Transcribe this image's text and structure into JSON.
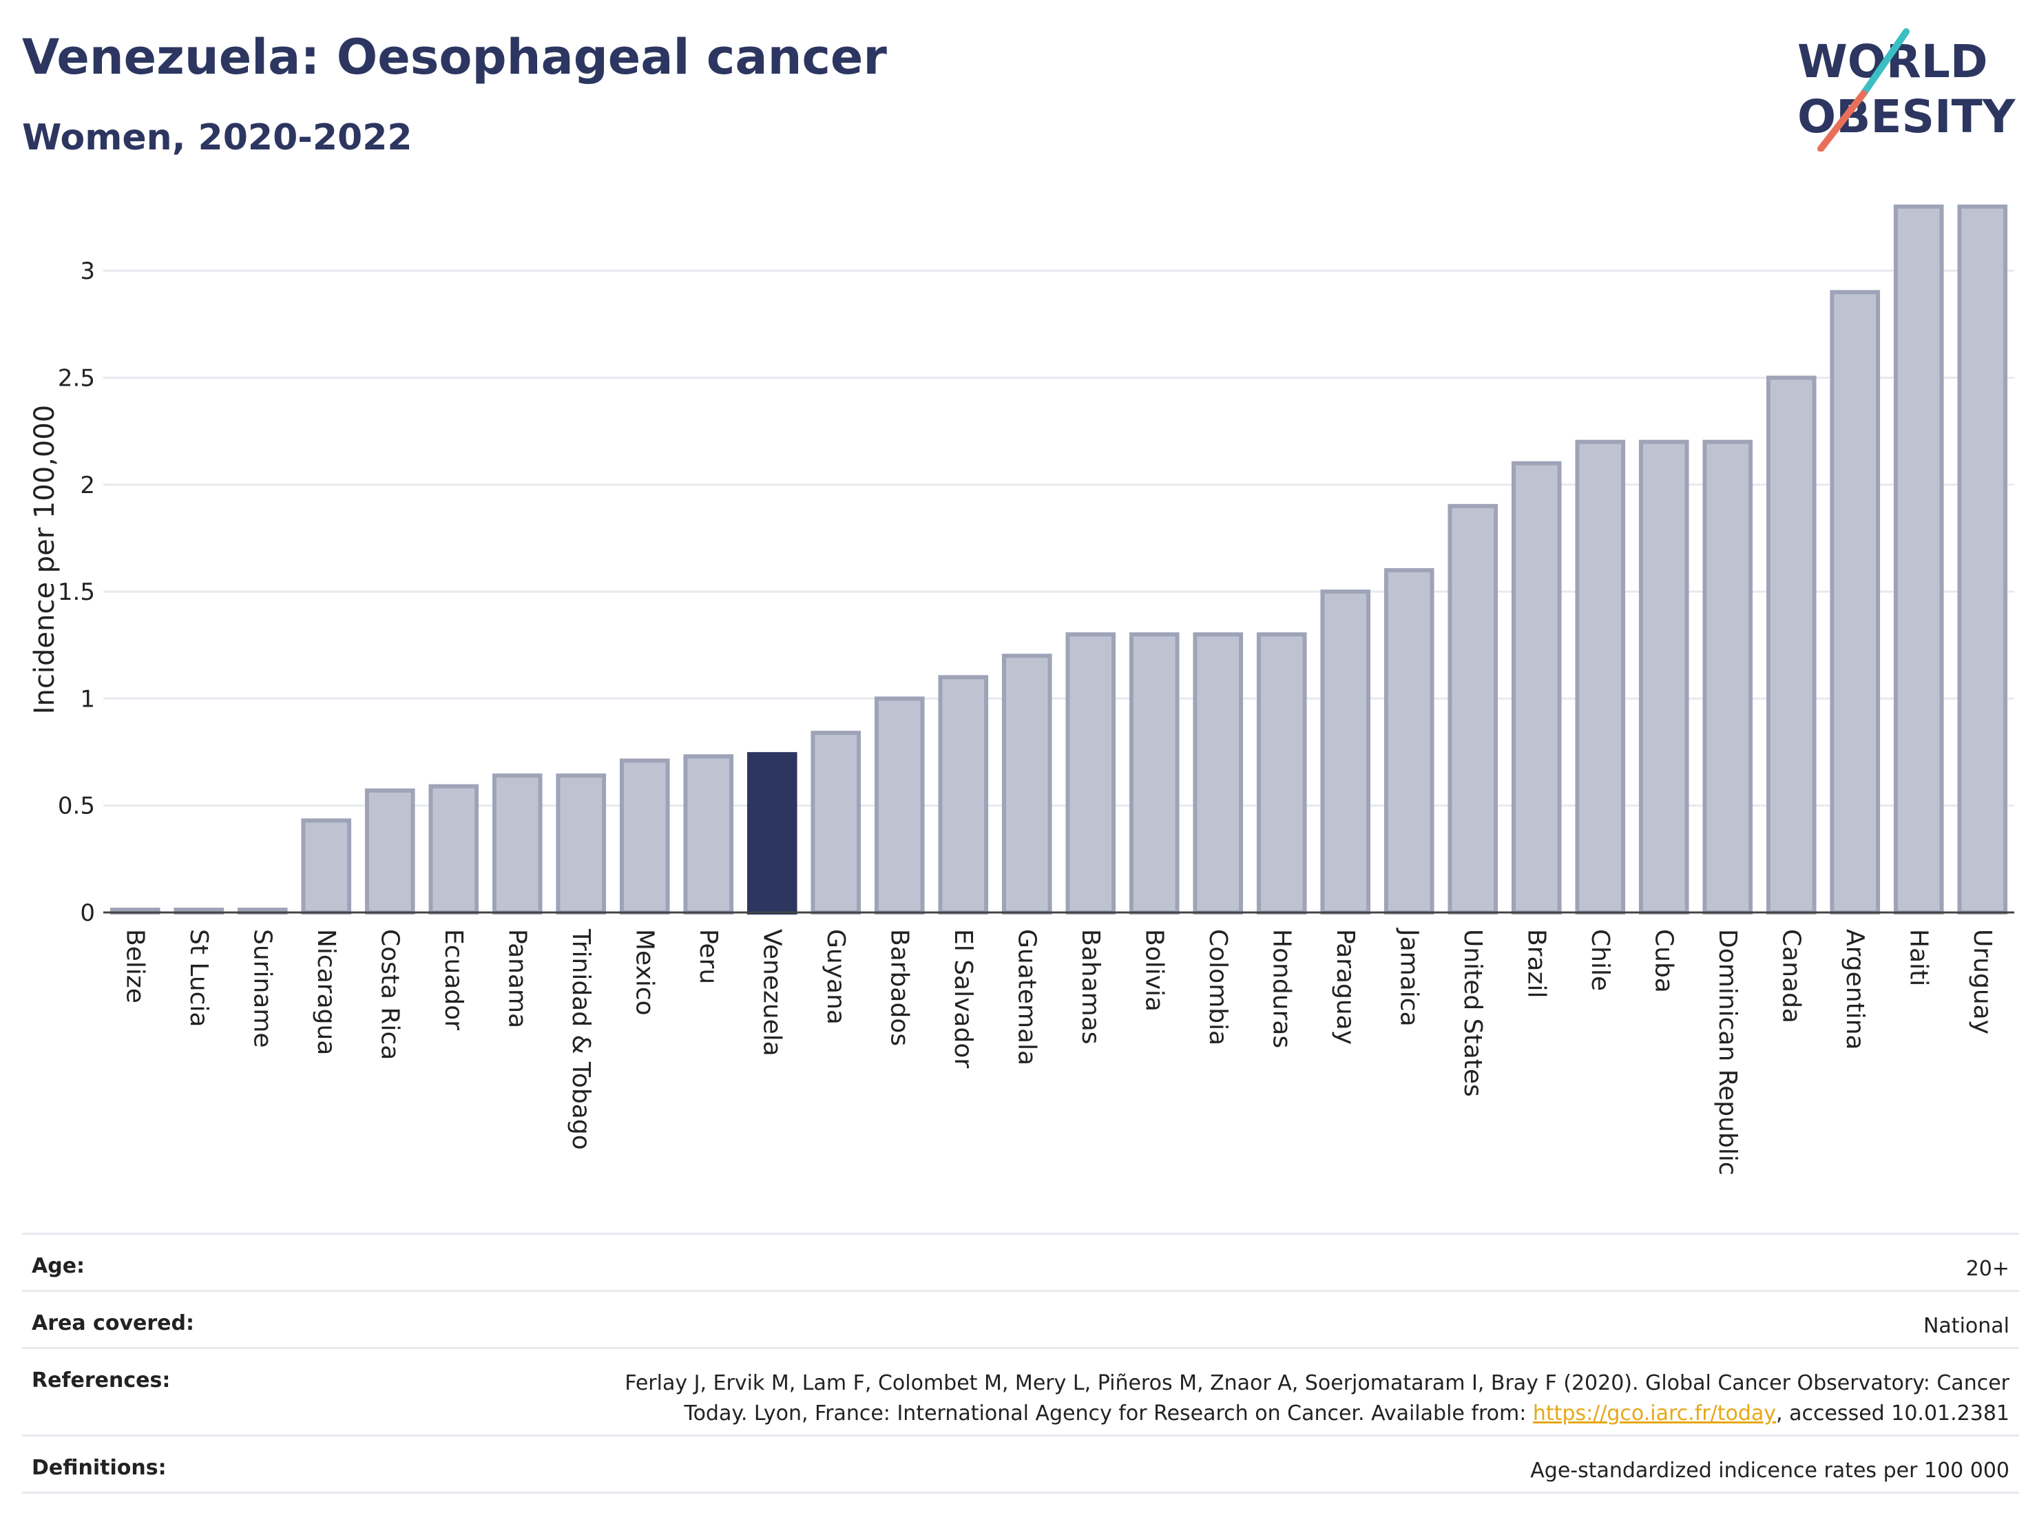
{
  "header": {
    "title": "Venezuela: Oesophageal cancer",
    "subtitle": "Women, 2020-2022",
    "logo_line1": "WORLD",
    "logo_line2": "OBESITY"
  },
  "colors": {
    "highlight": "#2c3660",
    "bar_fill": "#bfc3d1",
    "bar_stroke": "#9ea3b8",
    "title": "#2c3660",
    "link": "#e6a817",
    "logo_teal": "#3bbfc4",
    "logo_coral": "#e8705a"
  },
  "chart_data": {
    "type": "bar",
    "ylabel": "Incidence per 100,000",
    "ylim": [
      0,
      3.3
    ],
    "yticks": [
      0,
      0.5,
      1,
      1.5,
      2,
      2.5,
      3
    ],
    "ytick_labels": [
      "0",
      "0.5",
      "1",
      "1.5",
      "2",
      "2.5",
      "3"
    ],
    "grid": true,
    "highlight": "Venezuela",
    "categories": [
      "Belize",
      "St Lucia",
      "Suriname",
      "Nicaragua",
      "Costa Rica",
      "Ecuador",
      "Panama",
      "Trinidad & Tobago",
      "Mexico",
      "Peru",
      "Venezuela",
      "Guyana",
      "Barbados",
      "El Salvador",
      "Guatemala",
      "Bahamas",
      "Bolivia",
      "Colombia",
      "Honduras",
      "Paraguay",
      "Jamaica",
      "United States",
      "Brazil",
      "Chile",
      "Cuba",
      "Dominican Republic",
      "Canada",
      "Argentina",
      "Haiti",
      "Uruguay"
    ],
    "values": [
      0,
      0,
      0,
      0.43,
      0.57,
      0.59,
      0.64,
      0.64,
      0.71,
      0.73,
      0.74,
      0.84,
      1.0,
      1.1,
      1.2,
      1.3,
      1.3,
      1.3,
      1.3,
      1.5,
      1.6,
      1.9,
      2.1,
      2.2,
      2.2,
      2.2,
      2.5,
      2.9,
      3.3,
      3.3
    ]
  },
  "meta": {
    "age_label": "Age:",
    "age_value": "20+",
    "area_label": "Area covered:",
    "area_value": "National",
    "references_label": "References:",
    "references_line1": "Ferlay J, Ervik M, Lam F, Colombet M, Mery L, Piñeros M, Znaor A, Soerjomataram I, Bray F (2020). Global Cancer Observatory: Cancer",
    "references_line2_pre": "Today. Lyon, France: International Agency for Research on Cancer. Available from: ",
    "references_link": "https://gco.iarc.fr/today",
    "references_line2_post": ", accessed 10.01.2381",
    "definitions_label": "Definitions:",
    "definitions_value": "Age-standardized indicence rates per 100 000"
  }
}
